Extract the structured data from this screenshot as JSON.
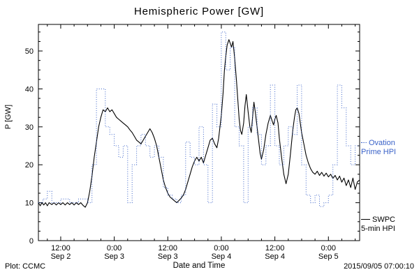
{
  "title": "Hemispheric Power [GW]",
  "axes": {
    "ylabel": "P [GW]",
    "xlabel": "Date and Time"
  },
  "footer": {
    "left": "Plot: CCMC",
    "right": "2015/09/05 07:00:10"
  },
  "legend": {
    "ovation": {
      "line1": "Ovation",
      "line2": "Prime HPI",
      "color": "#3a62c8"
    },
    "swpc": {
      "line1": "SWPC",
      "line2": "5-min HPI",
      "color": "#000000"
    }
  },
  "chart_data": {
    "type": "line",
    "title": "Hemispheric Power [GW]",
    "xlabel": "Date and Time",
    "ylabel": "P [GW]",
    "x_unit": "hours since 2015-09-02 00:00",
    "xlim": [
      7,
      79
    ],
    "ylim": [
      0,
      57
    ],
    "grid": false,
    "legend_position": "right-outside",
    "yticks": [
      0,
      10,
      20,
      30,
      40,
      50
    ],
    "xticks": [
      {
        "t": 12,
        "time": "12:00",
        "date": "Sep 2"
      },
      {
        "t": 24,
        "time": "0:00",
        "date": "Sep 3"
      },
      {
        "t": 36,
        "time": "12:00",
        "date": "Sep 3"
      },
      {
        "t": 48,
        "time": "0:00",
        "date": "Sep 4"
      },
      {
        "t": 60,
        "time": "12:00",
        "date": "Sep 4"
      },
      {
        "t": 72,
        "time": "0:00",
        "date": "Sep 5"
      }
    ],
    "series": [
      {
        "name": "SWPC 5-min HPI",
        "color": "#000000",
        "line": "solid",
        "points": [
          [
            7,
            10
          ],
          [
            7.4,
            9.2
          ],
          [
            7.8,
            10
          ],
          [
            8.2,
            9.4
          ],
          [
            8.6,
            10
          ],
          [
            9,
            9.2
          ],
          [
            9.4,
            10
          ],
          [
            10,
            9.5
          ],
          [
            10.5,
            10
          ],
          [
            11,
            9.4
          ],
          [
            11.5,
            10
          ],
          [
            12,
            9.5
          ],
          [
            12.5,
            10
          ],
          [
            13,
            9.4
          ],
          [
            13.5,
            10
          ],
          [
            14,
            9.5
          ],
          [
            14.5,
            10
          ],
          [
            15,
            9.4
          ],
          [
            15.5,
            10
          ],
          [
            16,
            9.5
          ],
          [
            16.5,
            10
          ],
          [
            17,
            9.3
          ],
          [
            17.5,
            8.8
          ],
          [
            18,
            10
          ],
          [
            18.5,
            13
          ],
          [
            19,
            17
          ],
          [
            19.5,
            22
          ],
          [
            20,
            26
          ],
          [
            20.5,
            30
          ],
          [
            21,
            32.5
          ],
          [
            21.5,
            34.5
          ],
          [
            22,
            34
          ],
          [
            22.5,
            35
          ],
          [
            23,
            34
          ],
          [
            23.5,
            34.5
          ],
          [
            24,
            33.5
          ],
          [
            24.5,
            32.5
          ],
          [
            25,
            32
          ],
          [
            25.5,
            31.5
          ],
          [
            26,
            31
          ],
          [
            26.5,
            30.5
          ],
          [
            27,
            30
          ],
          [
            27.5,
            29.2
          ],
          [
            28,
            28.5
          ],
          [
            28.5,
            27.5
          ],
          [
            29,
            26.5
          ],
          [
            29.5,
            26
          ],
          [
            30,
            25.5
          ],
          [
            30.5,
            26.5
          ],
          [
            31,
            27.5
          ],
          [
            31.5,
            28.5
          ],
          [
            32,
            29.5
          ],
          [
            32.5,
            28.5
          ],
          [
            33,
            27
          ],
          [
            33.5,
            25
          ],
          [
            34,
            22
          ],
          [
            34.5,
            19
          ],
          [
            35,
            16
          ],
          [
            35.5,
            14
          ],
          [
            36,
            12.5
          ],
          [
            36.5,
            11.5
          ],
          [
            37,
            11
          ],
          [
            37.5,
            10.5
          ],
          [
            38,
            10
          ],
          [
            38.5,
            10.6
          ],
          [
            39,
            11.2
          ],
          [
            39.5,
            12
          ],
          [
            40,
            13.5
          ],
          [
            40.5,
            15.5
          ],
          [
            41,
            17.5
          ],
          [
            41.5,
            19.5
          ],
          [
            42,
            21
          ],
          [
            42.5,
            22
          ],
          [
            43,
            21
          ],
          [
            43.5,
            22
          ],
          [
            44,
            20.5
          ],
          [
            44.5,
            22.5
          ],
          [
            45,
            24.5
          ],
          [
            45.5,
            26.5
          ],
          [
            46,
            27
          ],
          [
            46.5,
            25.5
          ],
          [
            47,
            24.5
          ],
          [
            47.4,
            27
          ],
          [
            47.7,
            30
          ],
          [
            48,
            33
          ],
          [
            48.4,
            39
          ],
          [
            48.7,
            45
          ],
          [
            49,
            48.5
          ],
          [
            49.3,
            51.5
          ],
          [
            49.7,
            53
          ],
          [
            50,
            52
          ],
          [
            50.3,
            51
          ],
          [
            50.6,
            52.5
          ],
          [
            51,
            48
          ],
          [
            51.4,
            42
          ],
          [
            51.7,
            37
          ],
          [
            52,
            32
          ],
          [
            52.3,
            29
          ],
          [
            52.6,
            28
          ],
          [
            53,
            31
          ],
          [
            53.3,
            35.5
          ],
          [
            53.6,
            38.5
          ],
          [
            54,
            34
          ],
          [
            54.4,
            30
          ],
          [
            54.7,
            28.5
          ],
          [
            55,
            32.5
          ],
          [
            55.3,
            36.5
          ],
          [
            55.6,
            34
          ],
          [
            56,
            30
          ],
          [
            56.4,
            26
          ],
          [
            56.7,
            23
          ],
          [
            57,
            21.5
          ],
          [
            57.5,
            24
          ],
          [
            58,
            28
          ],
          [
            58.5,
            31
          ],
          [
            59,
            33
          ],
          [
            59.4,
            31.5
          ],
          [
            59.7,
            30.5
          ],
          [
            60,
            32
          ],
          [
            60.3,
            33
          ],
          [
            60.7,
            31
          ],
          [
            61,
            27
          ],
          [
            61.5,
            22
          ],
          [
            62,
            17.5
          ],
          [
            62.5,
            15
          ],
          [
            63,
            17.5
          ],
          [
            63.5,
            23
          ],
          [
            64,
            29
          ],
          [
            64.4,
            32.5
          ],
          [
            64.7,
            34.5
          ],
          [
            65,
            35
          ],
          [
            65.4,
            33.5
          ],
          [
            65.7,
            31
          ],
          [
            66,
            28.5
          ],
          [
            66.5,
            25.5
          ],
          [
            67,
            22.5
          ],
          [
            67.5,
            20.5
          ],
          [
            68,
            19
          ],
          [
            68.5,
            18
          ],
          [
            69,
            17.5
          ],
          [
            69.5,
            18.3
          ],
          [
            70,
            17.2
          ],
          [
            70.5,
            18
          ],
          [
            71,
            17
          ],
          [
            71.5,
            17.8
          ],
          [
            72,
            16.8
          ],
          [
            72.5,
            17.5
          ],
          [
            73,
            16.4
          ],
          [
            73.5,
            17.2
          ],
          [
            74,
            16
          ],
          [
            74.5,
            17
          ],
          [
            75,
            15.4
          ],
          [
            75.5,
            16.5
          ],
          [
            76,
            14.5
          ],
          [
            76.5,
            16
          ],
          [
            77,
            14
          ],
          [
            77.5,
            16.5
          ],
          [
            78,
            13.5
          ],
          [
            78.5,
            15.5
          ],
          [
            79,
            16
          ]
        ]
      },
      {
        "name": "Ovation Prime HPI",
        "color": "#3a62c8",
        "line": "dotted-step",
        "points": [
          [
            7,
            10
          ],
          [
            8,
            11
          ],
          [
            9,
            13
          ],
          [
            10,
            10
          ],
          [
            12,
            11
          ],
          [
            14,
            10
          ],
          [
            16,
            11
          ],
          [
            18,
            10
          ],
          [
            19,
            20
          ],
          [
            20,
            40
          ],
          [
            22,
            30
          ],
          [
            23,
            28
          ],
          [
            24,
            25
          ],
          [
            25,
            22
          ],
          [
            26,
            25
          ],
          [
            27,
            10
          ],
          [
            28,
            20
          ],
          [
            29,
            25
          ],
          [
            30,
            28
          ],
          [
            31,
            25
          ],
          [
            32,
            22
          ],
          [
            33,
            25
          ],
          [
            34,
            22
          ],
          [
            35,
            14
          ],
          [
            36,
            12
          ],
          [
            37,
            11
          ],
          [
            38,
            10
          ],
          [
            39,
            12
          ],
          [
            40,
            26
          ],
          [
            41,
            22
          ],
          [
            42,
            20
          ],
          [
            43,
            30
          ],
          [
            44,
            20
          ],
          [
            45,
            10
          ],
          [
            46,
            36
          ],
          [
            47,
            30
          ],
          [
            48,
            55
          ],
          [
            49,
            45
          ],
          [
            50,
            51
          ],
          [
            51,
            30
          ],
          [
            52,
            25
          ],
          [
            53,
            10
          ],
          [
            54,
            30
          ],
          [
            55,
            35
          ],
          [
            56,
            28
          ],
          [
            57,
            20
          ],
          [
            58,
            25
          ],
          [
            59,
            41
          ],
          [
            60,
            25
          ],
          [
            61,
            20
          ],
          [
            62,
            25
          ],
          [
            63,
            30
          ],
          [
            64,
            28
          ],
          [
            65,
            41
          ],
          [
            66,
            20
          ],
          [
            67,
            12
          ],
          [
            68,
            10
          ],
          [
            69,
            12
          ],
          [
            70,
            9
          ],
          [
            71,
            10
          ],
          [
            72,
            12
          ],
          [
            73,
            20
          ],
          [
            74,
            41
          ],
          [
            75,
            35
          ],
          [
            76,
            25
          ],
          [
            77,
            20
          ],
          [
            78,
            25
          ],
          [
            79,
            25
          ]
        ]
      }
    ]
  }
}
